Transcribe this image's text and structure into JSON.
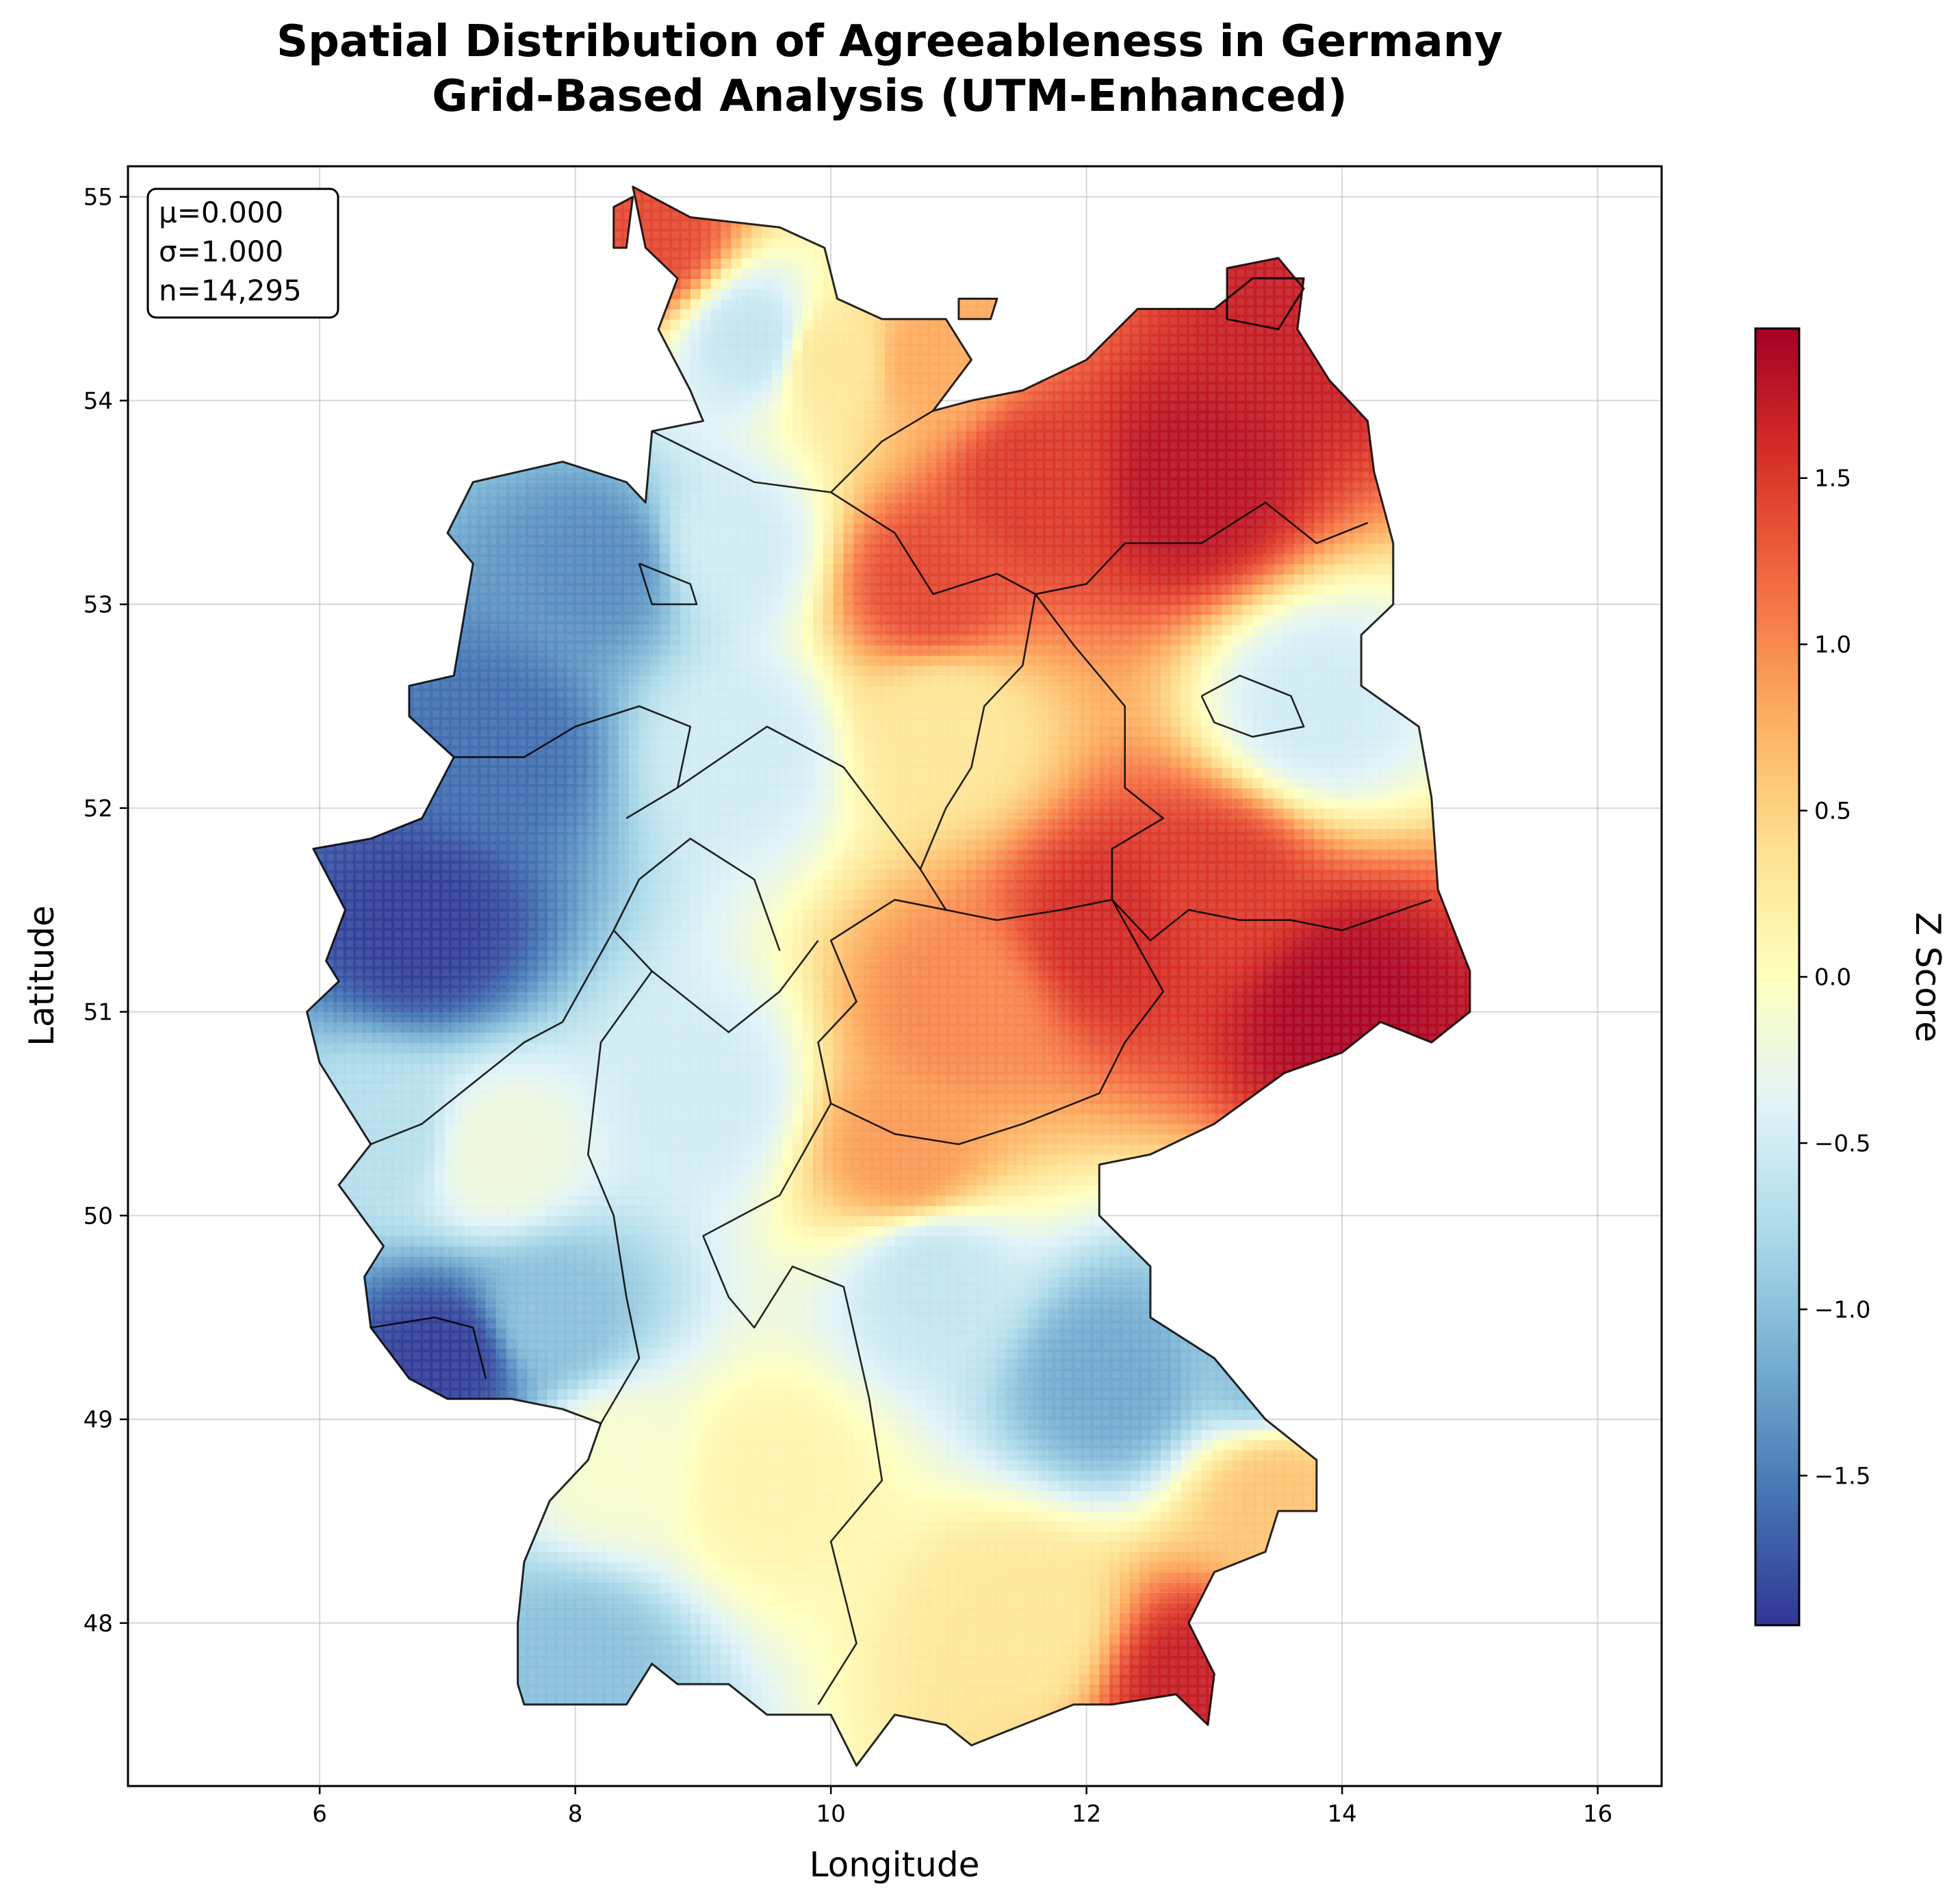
{
  "title_line1": "Spatial Distribution of Agreeableness in Germany",
  "title_line2": "Grid-Based Analysis (UTM-Enhanced)",
  "stats": {
    "mean": "μ=0.000",
    "sd": "σ=1.000",
    "n": "n=14,295"
  },
  "x_axis": {
    "label": "Longitude",
    "range": [
      4.5,
      16.5
    ],
    "ticks": [
      {
        "v": 6,
        "t": "6"
      },
      {
        "v": 8,
        "t": "8"
      },
      {
        "v": 10,
        "t": "10"
      },
      {
        "v": 12,
        "t": "12"
      },
      {
        "v": 14,
        "t": "14"
      },
      {
        "v": 16,
        "t": "16"
      }
    ]
  },
  "y_axis": {
    "label": "Latitude",
    "range": [
      47.2,
      55.15
    ],
    "ticks": [
      {
        "v": 48,
        "t": "48"
      },
      {
        "v": 49,
        "t": "49"
      },
      {
        "v": 50,
        "t": "50"
      },
      {
        "v": 51,
        "t": "51"
      },
      {
        "v": 52,
        "t": "52"
      },
      {
        "v": 53,
        "t": "53"
      },
      {
        "v": 54,
        "t": "54"
      },
      {
        "v": 55,
        "t": "55"
      }
    ]
  },
  "colorbar": {
    "label": "Z Score",
    "range": [
      -1.95,
      1.95
    ],
    "colormap": "RdYlBu_r",
    "ticks": [
      {
        "v": -1.5,
        "t": "−1.5"
      },
      {
        "v": -1.0,
        "t": "−1.0"
      },
      {
        "v": -0.5,
        "t": "−0.5"
      },
      {
        "v": 0.0,
        "t": "0.0"
      },
      {
        "v": 0.5,
        "t": "0.5"
      },
      {
        "v": 1.0,
        "t": "1.0"
      },
      {
        "v": 1.5,
        "t": "1.5"
      }
    ]
  },
  "grid": true,
  "colors": {
    "low": "#313695",
    "mid": "#ffffbf",
    "high": "#a50026",
    "border": "#000000"
  },
  "chart_data": {
    "type": "heatmap",
    "xlabel": "Longitude",
    "ylabel": "Latitude",
    "zlabel": "Z Score",
    "xlim": [
      4.5,
      16.5
    ],
    "ylim": [
      47.2,
      55.15
    ],
    "zlim": [
      -1.95,
      1.95
    ],
    "regions": [
      {
        "lon": 6.8,
        "lat": 51.4,
        "z": -1.9
      },
      {
        "lon": 7.0,
        "lat": 49.3,
        "z": -1.9
      },
      {
        "lon": 8.2,
        "lat": 53.2,
        "z": -1.4
      },
      {
        "lon": 7.4,
        "lat": 52.3,
        "z": -1.6
      },
      {
        "lon": 9.3,
        "lat": 52.3,
        "z": -0.5
      },
      {
        "lon": 9.4,
        "lat": 54.3,
        "z": -0.6
      },
      {
        "lon": 10.0,
        "lat": 54.2,
        "z": 0.3
      },
      {
        "lon": 10.8,
        "lat": 54.2,
        "z": 0.8
      },
      {
        "lon": 11.6,
        "lat": 53.6,
        "z": 1.5
      },
      {
        "lon": 12.8,
        "lat": 53.6,
        "z": 1.8
      },
      {
        "lon": 13.8,
        "lat": 54.5,
        "z": 1.7
      },
      {
        "lon": 10.8,
        "lat": 53.1,
        "z": 1.4
      },
      {
        "lon": 13.8,
        "lat": 52.5,
        "z": -0.5
      },
      {
        "lon": 13.0,
        "lat": 51.6,
        "z": 1.5
      },
      {
        "lon": 14.0,
        "lat": 51.0,
        "z": 1.9
      },
      {
        "lon": 12.2,
        "lat": 51.4,
        "z": 1.6
      },
      {
        "lon": 11.0,
        "lat": 51.0,
        "z": 1.0
      },
      {
        "lon": 10.9,
        "lat": 52.4,
        "z": 0.3
      },
      {
        "lon": 10.6,
        "lat": 50.3,
        "z": 0.9
      },
      {
        "lon": 9.0,
        "lat": 50.6,
        "z": -0.5
      },
      {
        "lon": 7.4,
        "lat": 50.3,
        "z": -0.2
      },
      {
        "lon": 12.2,
        "lat": 49.2,
        "z": -1.2
      },
      {
        "lon": 13.4,
        "lat": 49.3,
        "z": -1.0
      },
      {
        "lon": 10.8,
        "lat": 49.7,
        "z": -0.6
      },
      {
        "lon": 13.5,
        "lat": 48.6,
        "z": 0.6
      },
      {
        "lon": 12.9,
        "lat": 47.7,
        "z": 1.7
      },
      {
        "lon": 11.5,
        "lat": 48.0,
        "z": 0.3
      },
      {
        "lon": 9.5,
        "lat": 48.7,
        "z": 0.15
      },
      {
        "lon": 8.0,
        "lat": 47.8,
        "z": -1.0
      },
      {
        "lon": 8.3,
        "lat": 48.8,
        "z": -0.1
      },
      {
        "lon": 8.6,
        "lat": 54.8,
        "z": 1.4
      },
      {
        "lon": 9.2,
        "lat": 53.3,
        "z": -0.5
      },
      {
        "lon": 7.8,
        "lat": 49.5,
        "z": -1.0
      },
      {
        "lon": 6.5,
        "lat": 50.4,
        "z": -0.7
      }
    ]
  }
}
